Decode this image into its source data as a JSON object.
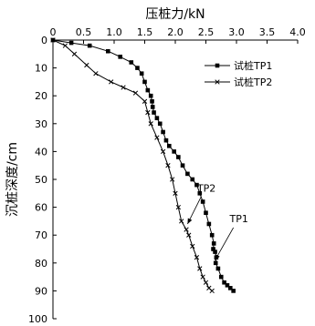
{
  "chart_data": {
    "type": "line",
    "xlabel": "压桩力/kN",
    "ylabel": "沉桩深度/cm",
    "xlim": [
      0,
      4.0
    ],
    "ylim": [
      0,
      100
    ],
    "x_axis_position": "top",
    "y_axis_inverted": true,
    "x_ticks": [
      "0",
      "0.5",
      "1.0",
      "1.5",
      "2.0",
      "2.5",
      "3.0",
      "3.5",
      "4.0"
    ],
    "y_ticks": [
      "0",
      "10",
      "20",
      "30",
      "40",
      "50",
      "60",
      "70",
      "80",
      "90",
      "100"
    ],
    "grid": false,
    "legend_position": "top-right",
    "series": [
      {
        "name": "试桩TP1",
        "marker": "square",
        "color": "#000000",
        "points": [
          [
            0,
            0
          ],
          [
            0.3,
            1
          ],
          [
            0.6,
            2
          ],
          [
            0.9,
            4
          ],
          [
            1.1,
            6
          ],
          [
            1.28,
            8
          ],
          [
            1.38,
            10
          ],
          [
            1.45,
            12
          ],
          [
            1.5,
            15
          ],
          [
            1.55,
            18
          ],
          [
            1.6,
            20
          ],
          [
            1.62,
            22
          ],
          [
            1.63,
            24
          ],
          [
            1.65,
            26
          ],
          [
            1.7,
            28
          ],
          [
            1.75,
            30
          ],
          [
            1.8,
            33
          ],
          [
            1.85,
            36
          ],
          [
            1.9,
            38
          ],
          [
            1.98,
            40
          ],
          [
            2.05,
            42
          ],
          [
            2.12,
            45
          ],
          [
            2.2,
            48
          ],
          [
            2.28,
            50
          ],
          [
            2.35,
            52
          ],
          [
            2.4,
            55
          ],
          [
            2.45,
            58
          ],
          [
            2.5,
            62
          ],
          [
            2.55,
            66
          ],
          [
            2.6,
            70
          ],
          [
            2.63,
            73
          ],
          [
            2.62,
            75
          ],
          [
            2.65,
            76
          ],
          [
            2.67,
            78
          ],
          [
            2.66,
            80
          ],
          [
            2.7,
            82
          ],
          [
            2.75,
            85
          ],
          [
            2.8,
            87
          ],
          [
            2.85,
            88
          ],
          [
            2.9,
            89
          ],
          [
            2.95,
            90
          ]
        ]
      },
      {
        "name": "试桩TP2",
        "marker": "x",
        "color": "#000000",
        "points": [
          [
            0,
            0
          ],
          [
            0.2,
            2
          ],
          [
            0.35,
            5
          ],
          [
            0.55,
            9
          ],
          [
            0.7,
            12
          ],
          [
            0.95,
            15
          ],
          [
            1.15,
            17
          ],
          [
            1.35,
            19
          ],
          [
            1.5,
            22
          ],
          [
            1.55,
            26
          ],
          [
            1.6,
            30
          ],
          [
            1.7,
            35
          ],
          [
            1.8,
            40
          ],
          [
            1.88,
            45
          ],
          [
            1.95,
            50
          ],
          [
            2.0,
            55
          ],
          [
            2.05,
            60
          ],
          [
            2.1,
            65
          ],
          [
            2.18,
            68
          ],
          [
            2.22,
            70
          ],
          [
            2.28,
            74
          ],
          [
            2.35,
            78
          ],
          [
            2.4,
            82
          ],
          [
            2.45,
            85
          ],
          [
            2.5,
            87
          ],
          [
            2.55,
            89
          ],
          [
            2.6,
            90
          ]
        ]
      }
    ],
    "annotations": [
      {
        "text": "TP2",
        "target": [
          2.2,
          66
        ],
        "label_at": [
          2.42,
          55
        ]
      },
      {
        "text": "TP1",
        "target": [
          2.65,
          79
        ],
        "label_at": [
          2.95,
          66
        ]
      }
    ]
  }
}
